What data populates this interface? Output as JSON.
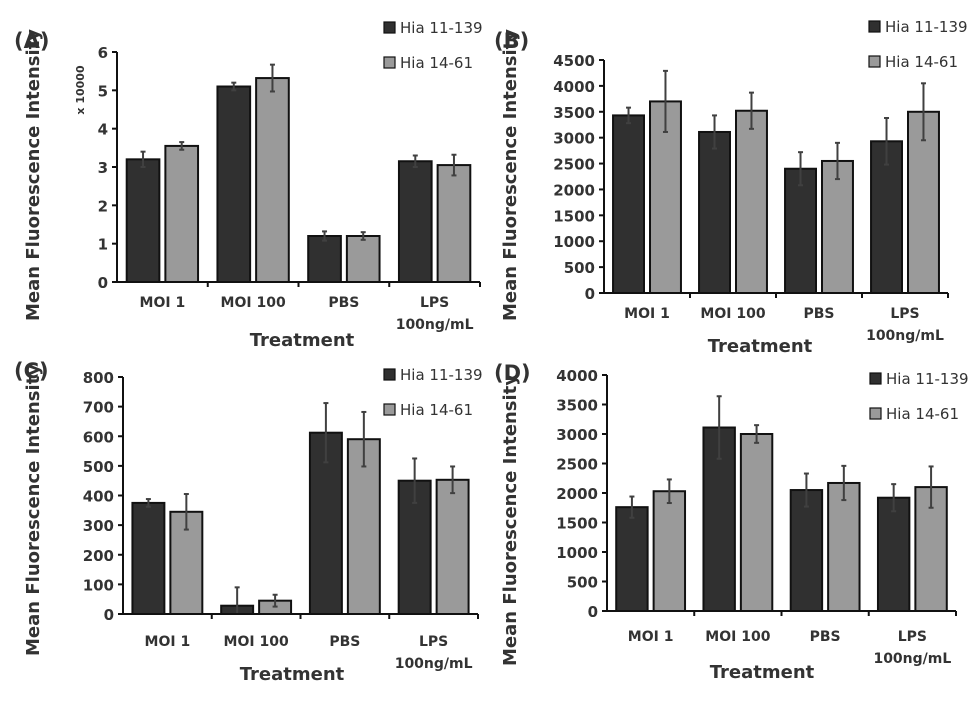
{
  "chart_data": [
    {
      "type": "bar",
      "panel_label": "(A)",
      "xlabel": "Treatment",
      "ylabel": "Mean Fluorescence Intensity",
      "y_multiplier_label": "x 10000",
      "categories": [
        "MOI 1",
        "MOI 100",
        "PBS",
        "LPS 100ng/mL"
      ],
      "ylim": [
        0,
        6
      ],
      "yticks": [
        0,
        1,
        2,
        3,
        4,
        5,
        6
      ],
      "grid": false,
      "legend_placement": "top-right",
      "series": [
        {
          "name": "Hia 11-139",
          "values": [
            3.2,
            5.1,
            1.2,
            3.15
          ],
          "errors": [
            0.2,
            0.1,
            0.12,
            0.15
          ]
        },
        {
          "name": "Hia 14-61",
          "values": [
            3.55,
            5.32,
            1.2,
            3.05
          ],
          "errors": [
            0.1,
            0.35,
            0.1,
            0.27
          ]
        }
      ]
    },
    {
      "type": "bar",
      "panel_label": "(B)",
      "xlabel": "Treatment",
      "ylabel": "Mean Fluorescence Intensity",
      "categories": [
        "MOI 1",
        "MOI 100",
        "PBS",
        "LPS 100ng/mL"
      ],
      "ylim": [
        0,
        4500
      ],
      "yticks": [
        0,
        500,
        1000,
        1500,
        2000,
        2500,
        3000,
        3500,
        4000,
        4500
      ],
      "grid": false,
      "legend_placement": "top-right",
      "series": [
        {
          "name": "Hia 11-139",
          "values": [
            3430,
            3110,
            2400,
            2930
          ],
          "errors": [
            150,
            320,
            320,
            450
          ]
        },
        {
          "name": "Hia 14-61",
          "values": [
            3700,
            3520,
            2550,
            3500
          ],
          "errors": [
            590,
            350,
            350,
            550
          ]
        }
      ]
    },
    {
      "type": "bar",
      "panel_label": "(C)",
      "xlabel": "Treatment",
      "ylabel": "Mean Fluorescence Intensity",
      "categories": [
        "MOI 1",
        "MOI 100",
        "PBS",
        "LPS 100ng/mL"
      ],
      "ylim": [
        0,
        800
      ],
      "yticks": [
        0,
        100,
        200,
        300,
        400,
        500,
        600,
        700,
        800
      ],
      "grid": false,
      "legend_placement": "top-right",
      "series": [
        {
          "name": "Hia 11-139",
          "values": [
            375,
            28,
            612,
            450
          ],
          "errors": [
            13,
            62,
            100,
            75
          ]
        },
        {
          "name": "Hia 14-61",
          "values": [
            345,
            45,
            590,
            453
          ],
          "errors": [
            60,
            20,
            92,
            45
          ]
        }
      ]
    },
    {
      "type": "bar",
      "panel_label": "(D)",
      "xlabel": "Treatment",
      "ylabel": "Mean Fluorescence Intensity",
      "categories": [
        "MOI 1",
        "MOI 100",
        "PBS",
        "LPS 100ng/mL"
      ],
      "ylim": [
        0,
        4000
      ],
      "yticks": [
        0,
        500,
        1000,
        1500,
        2000,
        2500,
        3000,
        3500,
        4000
      ],
      "grid": false,
      "legend_placement": "top-right",
      "series": [
        {
          "name": "Hia 11-139",
          "values": [
            1760,
            3110,
            2050,
            1920
          ],
          "errors": [
            180,
            530,
            280,
            230
          ]
        },
        {
          "name": "Hia 14-61",
          "values": [
            2030,
            3000,
            2170,
            2100
          ],
          "errors": [
            200,
            150,
            290,
            350
          ]
        }
      ]
    }
  ],
  "colors": {
    "series1": "#303030",
    "series2": "#9a9a9a",
    "axis": "#111111",
    "error_bar": "#404040"
  }
}
